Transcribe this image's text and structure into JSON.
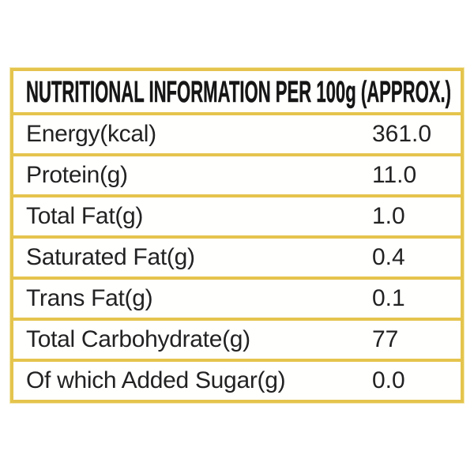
{
  "table": {
    "header": "NUTRITIONAL INFORMATION PER 100g (APPROX.)",
    "rows": [
      {
        "label": "Energy(kcal)",
        "value": "361.0"
      },
      {
        "label": "Protein(g)",
        "value": "11.0"
      },
      {
        "label": "Total Fat(g)",
        "value": "1.0"
      },
      {
        "label": "Saturated Fat(g)",
        "value": "0.4"
      },
      {
        "label": "Trans Fat(g)",
        "value": "0.1"
      },
      {
        "label": "Total Carbohydrate(g)",
        "value": "77"
      },
      {
        "label": "Of which Added Sugar(g)",
        "value": "0.0"
      }
    ],
    "colors": {
      "border": "#e5c44d",
      "border_glow": "#f4e7ab",
      "text": "#222222",
      "background": "#ffffff"
    }
  }
}
